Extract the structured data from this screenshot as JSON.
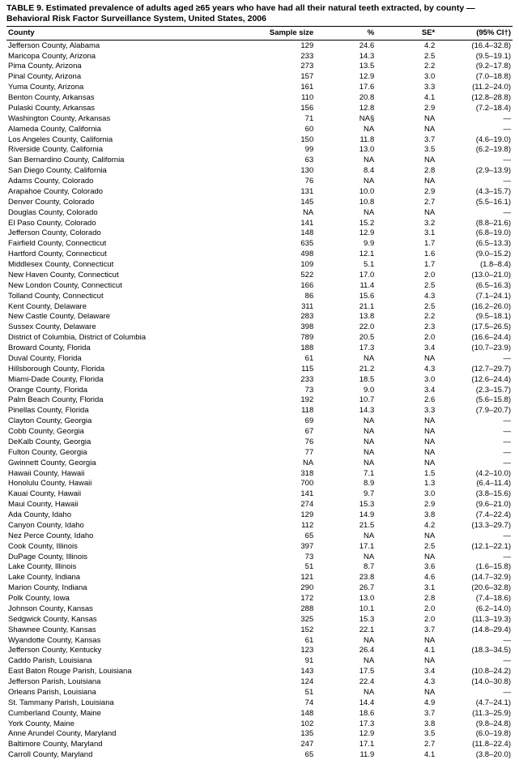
{
  "title": "TABLE 9. Estimated prevalence of adults aged ≥65 years who have had all their natural teeth extracted, by county — Behavioral Risk Factor Surveillance System, United States, 2006",
  "columns": [
    "County",
    "Sample size",
    "%",
    "SE*",
    "(95% CI†)"
  ],
  "rows": [
    [
      "Jefferson County, Alabama",
      "129",
      "24.6",
      "4.2",
      "(16.4–32.8)"
    ],
    [
      "Maricopa County, Arizona",
      "233",
      "14.3",
      "2.5",
      "(9.5–19.1)"
    ],
    [
      "Pima County, Arizona",
      "273",
      "13.5",
      "2.2",
      "(9.2–17.8)"
    ],
    [
      "Pinal County, Arizona",
      "157",
      "12.9",
      "3.0",
      "(7.0–18.8)"
    ],
    [
      "Yuma County, Arizona",
      "161",
      "17.6",
      "3.3",
      "(11.2–24.0)"
    ],
    [
      "Benton County, Arkansas",
      "110",
      "20.8",
      "4.1",
      "(12.8–28.8)"
    ],
    [
      "Pulaski County, Arkansas",
      "156",
      "12.8",
      "2.9",
      "(7.2–18.4)"
    ],
    [
      "Washington County, Arkansas",
      "71",
      "NA§",
      "NA",
      "—"
    ],
    [
      "Alameda County, California",
      "60",
      "NA",
      "NA",
      "—"
    ],
    [
      "Los Angeles County, California",
      "150",
      "11.8",
      "3.7",
      "(4.6–19.0)"
    ],
    [
      "Riverside County, California",
      "99",
      "13.0",
      "3.5",
      "(6.2–19.8)"
    ],
    [
      "San Bernardino County, California",
      "63",
      "NA",
      "NA",
      "—"
    ],
    [
      "San Diego County, California",
      "130",
      "8.4",
      "2.8",
      "(2.9–13.9)"
    ],
    [
      "Adams County, Colorado",
      "76",
      "NA",
      "NA",
      "—"
    ],
    [
      "Arapahoe County, Colorado",
      "131",
      "10.0",
      "2.9",
      "(4.3–15.7)"
    ],
    [
      "Denver County, Colorado",
      "145",
      "10.8",
      "2.7",
      "(5.5–16.1)"
    ],
    [
      "Douglas County, Colorado",
      "NA",
      "NA",
      "NA",
      "—"
    ],
    [
      "El Paso County, Colorado",
      "141",
      "15.2",
      "3.2",
      "(8.8–21.6)"
    ],
    [
      "Jefferson County, Colorado",
      "148",
      "12.9",
      "3.1",
      "(6.8–19.0)"
    ],
    [
      "Fairfield County, Connecticut",
      "635",
      "9.9",
      "1.7",
      "(6.5–13.3)"
    ],
    [
      "Hartford County, Connecticut",
      "498",
      "12.1",
      "1.6",
      "(9.0–15.2)"
    ],
    [
      "Middlesex County, Connecticut",
      "109",
      "5.1",
      "1.7",
      "(1.8–8.4)"
    ],
    [
      "New Haven County, Connecticut",
      "522",
      "17.0",
      "2.0",
      "(13.0–21.0)"
    ],
    [
      "New London County, Connecticut",
      "166",
      "11.4",
      "2.5",
      "(6.5–16.3)"
    ],
    [
      "Tolland County, Connecticut",
      "86",
      "15.6",
      "4.3",
      "(7.1–24.1)"
    ],
    [
      "Kent County, Delaware",
      "311",
      "21.1",
      "2.5",
      "(16.2–26.0)"
    ],
    [
      "New Castle County, Delaware",
      "283",
      "13.8",
      "2.2",
      "(9.5–18.1)"
    ],
    [
      "Sussex County, Delaware",
      "398",
      "22.0",
      "2.3",
      "(17.5–26.5)"
    ],
    [
      "District of Columbia, District of Columbia",
      "789",
      "20.5",
      "2.0",
      "(16.6–24.4)"
    ],
    [
      "Broward County, Florida",
      "188",
      "17.3",
      "3.4",
      "(10.7–23.9)"
    ],
    [
      "Duval County, Florida",
      "61",
      "NA",
      "NA",
      "—"
    ],
    [
      "Hillsborough County, Florida",
      "115",
      "21.2",
      "4.3",
      "(12.7–29.7)"
    ],
    [
      "Miami-Dade County, Florida",
      "233",
      "18.5",
      "3.0",
      "(12.6–24.4)"
    ],
    [
      "Orange County, Florida",
      "73",
      "9.0",
      "3.4",
      "(2.3–15.7)"
    ],
    [
      "Palm Beach County, Florida",
      "192",
      "10.7",
      "2.6",
      "(5.6–15.8)"
    ],
    [
      "Pinellas County, Florida",
      "118",
      "14.3",
      "3.3",
      "(7.9–20.7)"
    ],
    [
      "Clayton County, Georgia",
      "69",
      "NA",
      "NA",
      "—"
    ],
    [
      "Cobb County, Georgia",
      "67",
      "NA",
      "NA",
      "—"
    ],
    [
      "DeKalb County, Georgia",
      "76",
      "NA",
      "NA",
      "—"
    ],
    [
      "Fulton County, Georgia",
      "77",
      "NA",
      "NA",
      "—"
    ],
    [
      "Gwinnett County, Georgia",
      "NA",
      "NA",
      "NA",
      "—"
    ],
    [
      "Hawaii County, Hawaii",
      "318",
      "7.1",
      "1.5",
      "(4.2–10.0)"
    ],
    [
      "Honolulu County, Hawaii",
      "700",
      "8.9",
      "1.3",
      "(6.4–11.4)"
    ],
    [
      "Kauai County, Hawaii",
      "141",
      "9.7",
      "3.0",
      "(3.8–15.6)"
    ],
    [
      "Maui County, Hawaii",
      "274",
      "15.3",
      "2.9",
      "(9.6–21.0)"
    ],
    [
      "Ada County, Idaho",
      "129",
      "14.9",
      "3.8",
      "(7.4–22.4)"
    ],
    [
      "Canyon County, Idaho",
      "112",
      "21.5",
      "4.2",
      "(13.3–29.7)"
    ],
    [
      "Nez Perce County, Idaho",
      "65",
      "NA",
      "NA",
      "—"
    ],
    [
      "Cook County, Illinois",
      "397",
      "17.1",
      "2.5",
      "(12.1–22.1)"
    ],
    [
      "DuPage County, Illinois",
      "73",
      "NA",
      "NA",
      "—"
    ],
    [
      "Lake County, Illinois",
      "51",
      "8.7",
      "3.6",
      "(1.6–15.8)"
    ],
    [
      "Lake County, Indiana",
      "121",
      "23.8",
      "4.6",
      "(14.7–32.9)"
    ],
    [
      "Marion County, Indiana",
      "290",
      "26.7",
      "3.1",
      "(20.6–32.8)"
    ],
    [
      "Polk County, Iowa",
      "172",
      "13.0",
      "2.8",
      "(7.4–18.6)"
    ],
    [
      "Johnson County, Kansas",
      "288",
      "10.1",
      "2.0",
      "(6.2–14.0)"
    ],
    [
      "Sedgwick County, Kansas",
      "325",
      "15.3",
      "2.0",
      "(11.3–19.3)"
    ],
    [
      "Shawnee County, Kansas",
      "152",
      "22.1",
      "3.7",
      "(14.8–29.4)"
    ],
    [
      "Wyandotte County, Kansas",
      "61",
      "NA",
      "NA",
      "—"
    ],
    [
      "Jefferson County, Kentucky",
      "123",
      "26.4",
      "4.1",
      "(18.3–34.5)"
    ],
    [
      "Caddo Parish, Louisiana",
      "91",
      "NA",
      "NA",
      "—"
    ],
    [
      "East Baton Rouge Parish, Louisiana",
      "143",
      "17.5",
      "3.4",
      "(10.8–24.2)"
    ],
    [
      "Jefferson Parish, Louisiana",
      "124",
      "22.4",
      "4.3",
      "(14.0–30.8)"
    ],
    [
      "Orleans Parish, Louisiana",
      "51",
      "NA",
      "NA",
      "—"
    ],
    [
      "St. Tammany Parish, Louisiana",
      "74",
      "14.4",
      "4.9",
      "(4.7–24.1)"
    ],
    [
      "Cumberland County, Maine",
      "148",
      "18.6",
      "3.7",
      "(11.3–25.9)"
    ],
    [
      "York County, Maine",
      "102",
      "17.3",
      "3.8",
      "(9.8–24.8)"
    ],
    [
      "Anne Arundel County, Maryland",
      "135",
      "12.9",
      "3.5",
      "(6.0–19.8)"
    ],
    [
      "Baltimore County, Maryland",
      "247",
      "17.1",
      "2.7",
      "(11.8–22.4)"
    ],
    [
      "Carroll County, Maryland",
      "65",
      "11.9",
      "4.1",
      "(3.8–20.0)"
    ]
  ]
}
